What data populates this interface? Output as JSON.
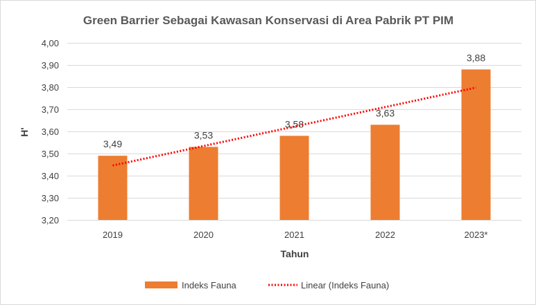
{
  "chart_data": {
    "type": "bar",
    "title": "Green Barrier Sebagai Kawasan Konservasi di Area Pabrik PT PIM",
    "xlabel": "Tahun",
    "ylabel": "H'",
    "categories": [
      "2019",
      "2020",
      "2021",
      "2022",
      "2023*"
    ],
    "series": [
      {
        "name": "Indeks Fauna",
        "values": [
          3.49,
          3.53,
          3.58,
          3.63,
          3.88
        ],
        "labels": [
          "3,49",
          "3,53",
          "3,58",
          "3,63",
          "3,88"
        ],
        "color": "#ED7D31"
      }
    ],
    "trendline": {
      "name": "Linear (Indeks Fauna)",
      "type": "linear",
      "color": "#FF0000",
      "style": "dotted"
    },
    "ylim": [
      3.2,
      4.0
    ],
    "yticks": [
      "3,20",
      "3,30",
      "3,40",
      "3,50",
      "3,60",
      "3,70",
      "3,80",
      "3,90",
      "4,00"
    ],
    "grid": true,
    "legend_position": "bottom"
  }
}
